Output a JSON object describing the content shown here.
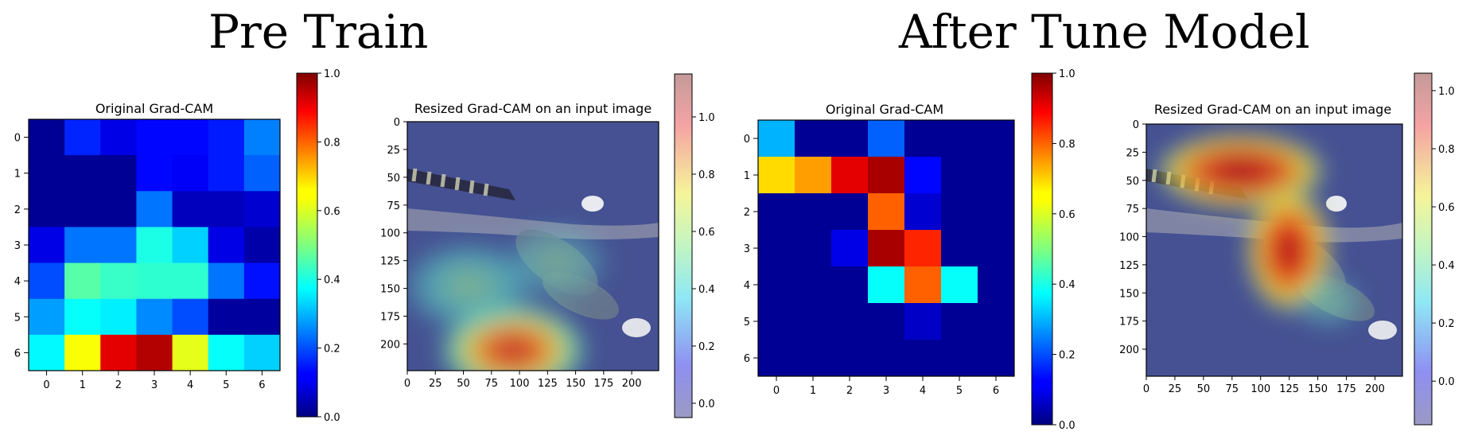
{
  "sections": {
    "pre": {
      "title": "Pre Train"
    },
    "after": {
      "title": "After Tune Model"
    }
  },
  "chart_data": [
    {
      "type": "heatmap",
      "group": "Pre Train",
      "title": "Original Grad-CAM",
      "colormap": "jet",
      "x": [
        0,
        1,
        2,
        3,
        4,
        5,
        6
      ],
      "y": [
        0,
        1,
        2,
        3,
        4,
        5,
        6
      ],
      "values": [
        [
          0.02,
          0.16,
          0.1,
          0.13,
          0.13,
          0.15,
          0.25
        ],
        [
          0.02,
          0.02,
          0.02,
          0.13,
          0.12,
          0.15,
          0.22
        ],
        [
          0.02,
          0.02,
          0.02,
          0.24,
          0.06,
          0.06,
          0.08
        ],
        [
          0.1,
          0.24,
          0.24,
          0.4,
          0.33,
          0.1,
          0.04
        ],
        [
          0.2,
          0.46,
          0.43,
          0.42,
          0.42,
          0.24,
          0.14
        ],
        [
          0.28,
          0.38,
          0.36,
          0.26,
          0.2,
          0.03,
          0.03
        ],
        [
          0.37,
          0.62,
          0.9,
          0.95,
          0.6,
          0.38,
          0.33
        ]
      ],
      "colorbar": {
        "min": 0.0,
        "max": 1.0,
        "ticks": [
          "0.0",
          "0.2",
          "0.4",
          "0.6",
          "0.8",
          "1.0"
        ]
      }
    },
    {
      "type": "heatmap",
      "group": "Pre Train",
      "title": "Resized Grad-CAM on an input image",
      "colormap": "jet",
      "overlay_alpha": 0.4,
      "x_ticks": [
        "0",
        "25",
        "50",
        "75",
        "100",
        "125",
        "150",
        "175",
        "200"
      ],
      "y_ticks": [
        "0",
        "25",
        "50",
        "75",
        "100",
        "125",
        "150",
        "175",
        "200"
      ],
      "extent": [
        0,
        224
      ],
      "colorbar": {
        "min": -0.05,
        "max": 1.15,
        "ticks": [
          "0.0",
          "0.2",
          "0.4",
          "0.6",
          "0.8",
          "1.0"
        ]
      }
    },
    {
      "type": "heatmap",
      "group": "After Tune Model",
      "title": "Original Grad-CAM",
      "colormap": "jet",
      "x": [
        0,
        1,
        2,
        3,
        4,
        5,
        6
      ],
      "y": [
        0,
        1,
        2,
        3,
        4,
        5,
        6
      ],
      "values": [
        [
          0.3,
          0.02,
          0.02,
          0.22,
          0.02,
          0.02,
          0.02
        ],
        [
          0.66,
          0.72,
          0.9,
          0.96,
          0.13,
          0.02,
          0.02
        ],
        [
          0.02,
          0.02,
          0.02,
          0.78,
          0.08,
          0.02,
          0.02
        ],
        [
          0.02,
          0.02,
          0.1,
          0.96,
          0.84,
          0.02,
          0.02
        ],
        [
          0.02,
          0.02,
          0.02,
          0.38,
          0.78,
          0.38,
          0.02
        ],
        [
          0.02,
          0.02,
          0.02,
          0.02,
          0.07,
          0.02,
          0.02
        ],
        [
          0.02,
          0.02,
          0.02,
          0.02,
          0.02,
          0.02,
          0.02
        ]
      ],
      "colorbar": {
        "min": 0.0,
        "max": 1.0,
        "ticks": [
          "0.0",
          "0.2",
          "0.4",
          "0.6",
          "0.8",
          "1.0"
        ]
      }
    },
    {
      "type": "heatmap",
      "group": "After Tune Model",
      "title": "Resized Grad-CAM on an input image",
      "colormap": "jet",
      "overlay_alpha": 0.4,
      "x_ticks": [
        "0",
        "25",
        "50",
        "75",
        "100",
        "125",
        "150",
        "175",
        "200"
      ],
      "y_ticks": [
        "0",
        "25",
        "50",
        "75",
        "100",
        "125",
        "150",
        "175",
        "200"
      ],
      "extent": [
        0,
        224
      ],
      "colorbar": {
        "min": -0.15,
        "max": 1.06,
        "ticks": [
          "0.0",
          "0.2",
          "0.4",
          "0.6",
          "0.8",
          "1.0"
        ]
      }
    }
  ]
}
